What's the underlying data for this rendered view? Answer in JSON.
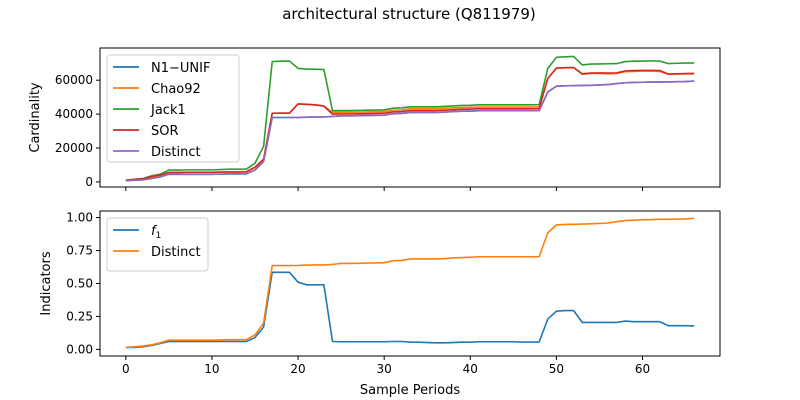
{
  "title": "architectural structure (Q811979)",
  "chart_data": [
    {
      "type": "line",
      "ylabel": "Cardinality",
      "xlabel": "",
      "xlim": [
        -3,
        69
      ],
      "ylim": [
        -3000,
        79000
      ],
      "xticks": [
        0,
        10,
        20,
        30,
        40,
        50,
        60
      ],
      "yticks": [
        0,
        20000,
        40000,
        60000
      ],
      "ytick_labels": [
        "0",
        "20000",
        "40000",
        "60000"
      ],
      "grid": false,
      "legend_position": "upper left",
      "series": [
        {
          "name": "N1−UNIF",
          "color": "#1f77b4",
          "x": [
            0,
            1,
            2,
            3,
            4,
            5,
            6,
            7,
            8,
            9,
            10,
            11,
            12,
            13,
            14,
            15,
            16,
            17,
            18,
            19,
            20,
            21,
            22,
            23,
            24,
            25,
            26,
            27,
            28,
            29,
            30,
            31,
            32,
            33,
            34,
            35,
            36,
            37,
            38,
            39,
            40,
            41,
            42,
            43,
            44,
            45,
            46,
            47,
            48,
            49,
            50,
            51,
            52,
            53,
            54,
            55,
            56,
            57,
            58,
            59,
            60,
            61,
            62,
            63,
            64,
            65,
            66
          ],
          "y": [
            800,
            1000,
            1200,
            2000,
            3000,
            4500,
            4500,
            4500,
            4500,
            4500,
            4500,
            4600,
            4700,
            4700,
            4800,
            7000,
            12000,
            38000,
            38000,
            38000,
            38000,
            38200,
            38300,
            38300,
            38600,
            39000,
            39000,
            39100,
            39200,
            39300,
            39400,
            40200,
            40400,
            41000,
            41000,
            41000,
            41000,
            41200,
            41500,
            41700,
            41800,
            42000,
            42000,
            42000,
            42000,
            42000,
            42000,
            42000,
            42000,
            53000,
            56500,
            56700,
            56800,
            56900,
            57000,
            57200,
            57400,
            58000,
            58500,
            58700,
            58800,
            58900,
            59000,
            59000,
            59100,
            59200,
            59500
          ]
        },
        {
          "name": "Chao92",
          "color": "#ff7f0e",
          "x": [
            0,
            1,
            2,
            3,
            4,
            5,
            6,
            7,
            8,
            9,
            10,
            11,
            12,
            13,
            14,
            15,
            16,
            17,
            18,
            19,
            20,
            21,
            22,
            23,
            24,
            25,
            26,
            27,
            28,
            29,
            30,
            31,
            32,
            33,
            34,
            35,
            36,
            37,
            38,
            39,
            40,
            41,
            42,
            43,
            44,
            45,
            46,
            47,
            48,
            49,
            50,
            51,
            52,
            53,
            54,
            55,
            56,
            57,
            58,
            59,
            60,
            61,
            62,
            63,
            64,
            65,
            66
          ],
          "y": [
            900,
            1400,
            1700,
            2800,
            3800,
            5500,
            5500,
            5600,
            5600,
            5600,
            5600,
            5700,
            5800,
            5800,
            5900,
            8500,
            13000,
            40500,
            40500,
            40500,
            46000,
            45800,
            45500,
            44800,
            41000,
            41100,
            41100,
            41200,
            41300,
            41400,
            41500,
            42300,
            42500,
            43200,
            43200,
            43200,
            43200,
            43400,
            43700,
            43900,
            44000,
            44200,
            44200,
            44200,
            44200,
            44200,
            44200,
            44200,
            44300,
            61000,
            67000,
            67300,
            67400,
            63500,
            64000,
            64000,
            63800,
            64000,
            65000,
            65200,
            65300,
            65300,
            65200,
            63500,
            63600,
            63700,
            63800
          ]
        },
        {
          "name": "Jack1",
          "color": "#2ca02c",
          "x": [
            0,
            1,
            2,
            3,
            4,
            5,
            6,
            7,
            8,
            9,
            10,
            11,
            12,
            13,
            14,
            15,
            16,
            17,
            18,
            19,
            20,
            21,
            22,
            23,
            24,
            25,
            26,
            27,
            28,
            29,
            30,
            31,
            32,
            33,
            34,
            35,
            36,
            37,
            38,
            39,
            40,
            41,
            42,
            43,
            44,
            45,
            46,
            47,
            48,
            49,
            50,
            51,
            52,
            53,
            54,
            55,
            56,
            57,
            58,
            59,
            60,
            61,
            62,
            63,
            64,
            65,
            66
          ],
          "y": [
            1000,
            1600,
            2000,
            3600,
            4600,
            7000,
            7000,
            7100,
            7100,
            7100,
            7100,
            7300,
            7500,
            7500,
            7600,
            11000,
            21000,
            71000,
            71200,
            71300,
            67000,
            66500,
            66500,
            66300,
            42000,
            42100,
            42100,
            42200,
            42300,
            42400,
            42500,
            43500,
            43700,
            44300,
            44300,
            44300,
            44300,
            44500,
            44800,
            45100,
            45200,
            45500,
            45500,
            45500,
            45500,
            45500,
            45500,
            45500,
            45600,
            67000,
            73500,
            73800,
            74000,
            69000,
            69500,
            69600,
            69700,
            69800,
            71000,
            71200,
            71300,
            71400,
            71300,
            69800,
            70000,
            70100,
            70200
          ]
        },
        {
          "name": "SOR",
          "color": "#d62728",
          "x": [
            0,
            1,
            2,
            3,
            4,
            5,
            6,
            7,
            8,
            9,
            10,
            11,
            12,
            13,
            14,
            15,
            16,
            17,
            18,
            19,
            20,
            21,
            22,
            23,
            24,
            25,
            26,
            27,
            28,
            29,
            30,
            31,
            32,
            33,
            34,
            35,
            36,
            37,
            38,
            39,
            40,
            41,
            42,
            43,
            44,
            45,
            46,
            47,
            48,
            49,
            50,
            51,
            52,
            53,
            54,
            55,
            56,
            57,
            58,
            59,
            60,
            61,
            62,
            63,
            64,
            65,
            66
          ],
          "y": [
            1000,
            1500,
            1800,
            3200,
            4000,
            5600,
            5600,
            5700,
            5700,
            5700,
            5700,
            5800,
            5900,
            5900,
            6000,
            8700,
            13500,
            40500,
            40600,
            40600,
            46000,
            45800,
            45400,
            44700,
            40000,
            40100,
            40100,
            40200,
            40300,
            40400,
            40500,
            41300,
            41500,
            42100,
            42100,
            42100,
            42100,
            42300,
            42600,
            42800,
            43000,
            43200,
            43200,
            43200,
            43200,
            43200,
            43200,
            43200,
            43300,
            61000,
            67200,
            67400,
            67500,
            63800,
            64200,
            64300,
            64200,
            64300,
            65500,
            65700,
            65800,
            65800,
            65700,
            63600,
            63800,
            63900,
            64000
          ]
        },
        {
          "name": "Distinct",
          "color": "#9467bd",
          "x": [
            0,
            1,
            2,
            3,
            4,
            5,
            6,
            7,
            8,
            9,
            10,
            11,
            12,
            13,
            14,
            15,
            16,
            17,
            18,
            19,
            20,
            21,
            22,
            23,
            24,
            25,
            26,
            27,
            28,
            29,
            30,
            31,
            32,
            33,
            34,
            35,
            36,
            37,
            38,
            39,
            40,
            41,
            42,
            43,
            44,
            45,
            46,
            47,
            48,
            49,
            50,
            51,
            52,
            53,
            54,
            55,
            56,
            57,
            58,
            59,
            60,
            61,
            62,
            63,
            64,
            65,
            66
          ],
          "y": [
            800,
            1000,
            1200,
            2000,
            3000,
            4500,
            4500,
            4500,
            4500,
            4500,
            4500,
            4600,
            4700,
            4700,
            4800,
            7000,
            12000,
            38000,
            38000,
            38000,
            38000,
            38200,
            38300,
            38300,
            38600,
            39000,
            39000,
            39100,
            39200,
            39300,
            39400,
            40200,
            40400,
            41000,
            41000,
            41000,
            41000,
            41200,
            41500,
            41700,
            41800,
            42000,
            42000,
            42000,
            42000,
            42000,
            42000,
            42000,
            42000,
            53000,
            56500,
            56700,
            56800,
            56900,
            57000,
            57200,
            57400,
            58000,
            58500,
            58700,
            58800,
            58900,
            59000,
            59000,
            59100,
            59200,
            59500
          ]
        }
      ]
    },
    {
      "type": "line",
      "ylabel": "Indicators",
      "xlabel": "Sample Periods",
      "xlim": [
        -3,
        69
      ],
      "ylim": [
        -0.05,
        1.05
      ],
      "xticks": [
        0,
        10,
        20,
        30,
        40,
        50,
        60
      ],
      "yticks": [
        0.0,
        0.25,
        0.5,
        0.75,
        1.0
      ],
      "ytick_labels": [
        "0.00",
        "0.25",
        "0.50",
        "0.75",
        "1.00"
      ],
      "grid": false,
      "legend_position": "upper left",
      "series": [
        {
          "name": "f",
          "name_subscript": "1",
          "color": "#1f77b4",
          "x": [
            0,
            1,
            2,
            3,
            4,
            5,
            6,
            7,
            8,
            9,
            10,
            11,
            12,
            13,
            14,
            15,
            16,
            17,
            18,
            19,
            20,
            21,
            22,
            23,
            24,
            25,
            26,
            27,
            28,
            29,
            30,
            31,
            32,
            33,
            34,
            35,
            36,
            37,
            38,
            39,
            40,
            41,
            42,
            43,
            44,
            45,
            46,
            47,
            48,
            49,
            50,
            51,
            52,
            53,
            54,
            55,
            56,
            57,
            58,
            59,
            60,
            61,
            62,
            63,
            64,
            65,
            66
          ],
          "y": [
            0.015,
            0.015,
            0.02,
            0.03,
            0.045,
            0.06,
            0.06,
            0.06,
            0.06,
            0.06,
            0.06,
            0.06,
            0.06,
            0.06,
            0.06,
            0.09,
            0.17,
            0.585,
            0.585,
            0.585,
            0.51,
            0.49,
            0.49,
            0.49,
            0.06,
            0.058,
            0.058,
            0.058,
            0.058,
            0.058,
            0.058,
            0.06,
            0.06,
            0.056,
            0.055,
            0.052,
            0.05,
            0.05,
            0.052,
            0.055,
            0.055,
            0.058,
            0.058,
            0.058,
            0.058,
            0.058,
            0.056,
            0.056,
            0.056,
            0.23,
            0.29,
            0.295,
            0.295,
            0.205,
            0.205,
            0.205,
            0.205,
            0.205,
            0.215,
            0.21,
            0.21,
            0.21,
            0.21,
            0.18,
            0.18,
            0.18,
            0.178
          ]
        },
        {
          "name": "Distinct",
          "color": "#ff7f0e",
          "x": [
            0,
            1,
            2,
            3,
            4,
            5,
            6,
            7,
            8,
            9,
            10,
            11,
            12,
            13,
            14,
            15,
            16,
            17,
            18,
            19,
            20,
            21,
            22,
            23,
            24,
            25,
            26,
            27,
            28,
            29,
            30,
            31,
            32,
            33,
            34,
            35,
            36,
            37,
            38,
            39,
            40,
            41,
            42,
            43,
            44,
            45,
            46,
            47,
            48,
            49,
            50,
            51,
            52,
            53,
            54,
            55,
            56,
            57,
            58,
            59,
            60,
            61,
            62,
            63,
            64,
            65,
            66
          ],
          "y": [
            0.015,
            0.02,
            0.025,
            0.035,
            0.05,
            0.07,
            0.07,
            0.07,
            0.07,
            0.07,
            0.07,
            0.072,
            0.074,
            0.074,
            0.075,
            0.11,
            0.2,
            0.636,
            0.636,
            0.636,
            0.637,
            0.64,
            0.641,
            0.641,
            0.645,
            0.652,
            0.652,
            0.653,
            0.655,
            0.656,
            0.658,
            0.672,
            0.675,
            0.686,
            0.686,
            0.686,
            0.686,
            0.689,
            0.694,
            0.697,
            0.699,
            0.703,
            0.703,
            0.703,
            0.703,
            0.703,
            0.703,
            0.703,
            0.703,
            0.885,
            0.944,
            0.948,
            0.949,
            0.951,
            0.953,
            0.956,
            0.959,
            0.969,
            0.978,
            0.98,
            0.983,
            0.985,
            0.987,
            0.987,
            0.989,
            0.99,
            0.995
          ]
        }
      ]
    }
  ]
}
